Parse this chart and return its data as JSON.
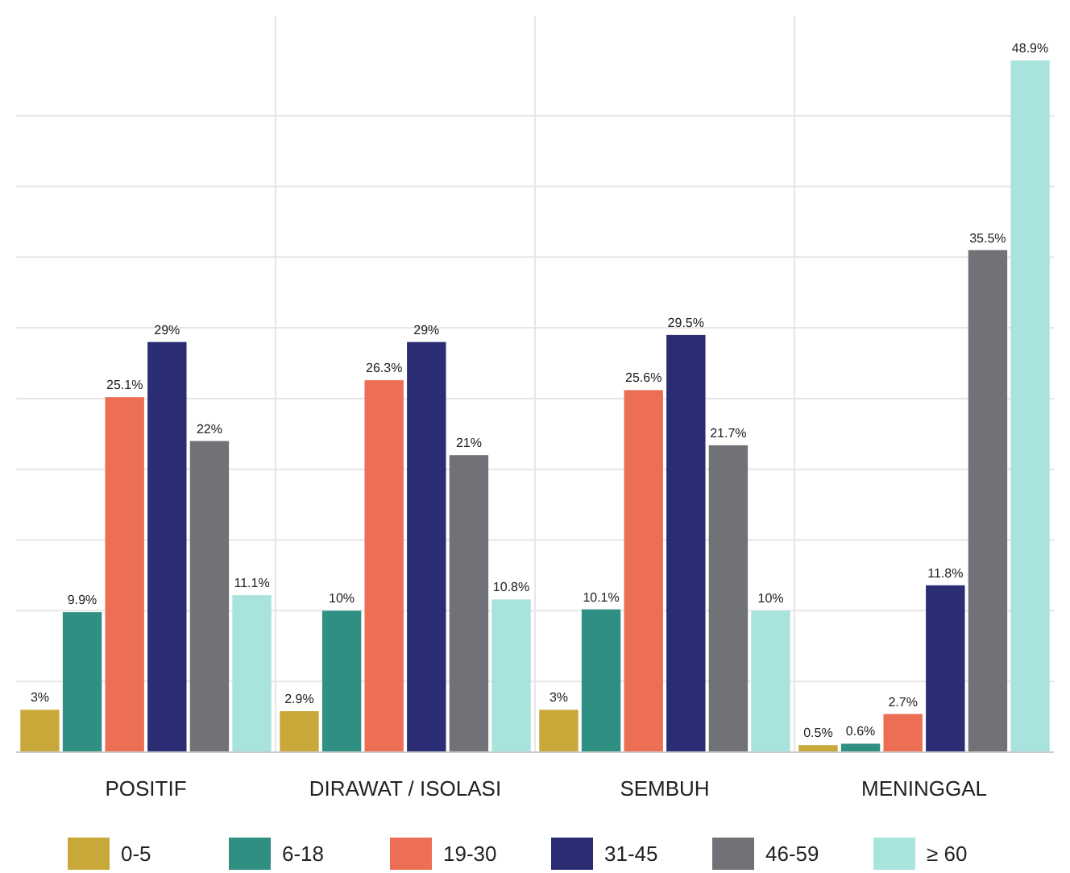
{
  "chart_data": {
    "type": "bar",
    "categories": [
      "POSITIF",
      "DIRAWAT / ISOLASI",
      "SEMBUH",
      "MENINGGAL"
    ],
    "series": [
      {
        "name": "0-5",
        "color": "#c9a83a",
        "values": [
          3,
          2.9,
          3,
          0.5
        ],
        "value_labels": [
          "3%",
          "2.9%",
          "3%",
          "0.5%"
        ]
      },
      {
        "name": "6-18",
        "color": "#2f8f83",
        "values": [
          9.9,
          10,
          10.1,
          0.6
        ],
        "value_labels": [
          "9.9%",
          "10%",
          "10.1%",
          "0.6%"
        ]
      },
      {
        "name": "19-30",
        "color": "#ec6e55",
        "values": [
          25.1,
          26.3,
          25.6,
          2.7
        ],
        "value_labels": [
          "25.1%",
          "26.3%",
          "25.6%",
          "2.7%"
        ]
      },
      {
        "name": "31-45",
        "color": "#2a2d73",
        "values": [
          29,
          29,
          29.5,
          11.8
        ],
        "value_labels": [
          "29%",
          "29%",
          "29.5%",
          "11.8%"
        ]
      },
      {
        "name": "46-59",
        "color": "#707277",
        "values": [
          22,
          21,
          21.7,
          35.5
        ],
        "value_labels": [
          "22%",
          "21%",
          "21.7%",
          "35.5%"
        ]
      },
      {
        "name": "≥ 60",
        "color": "#a8e3dd",
        "values": [
          11.1,
          10.8,
          10,
          48.9
        ],
        "value_labels": [
          "11.1%",
          "10.8%",
          "10%",
          "48.9%"
        ]
      }
    ],
    "tick_labels": "x",
    "grid": true,
    "legend": "bottom"
  }
}
